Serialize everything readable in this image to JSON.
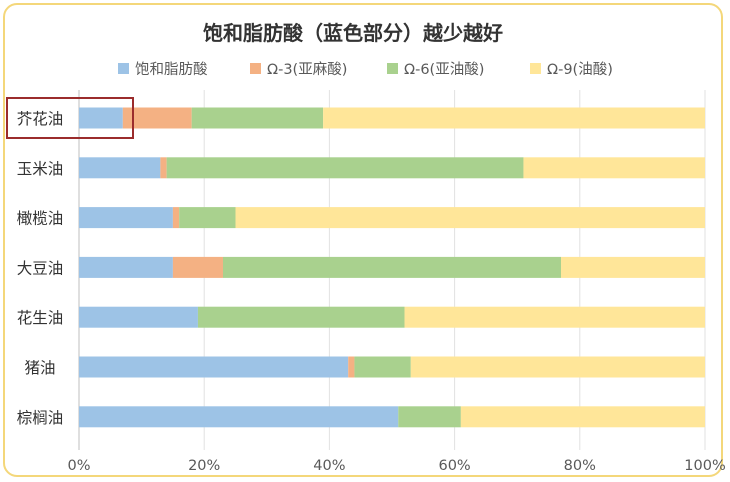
{
  "chart_data": {
    "type": "bar",
    "orientation": "horizontal",
    "stacked": true,
    "title": "饱和脂肪酸（蓝色部分）越少越好",
    "categories": [
      "芥花油",
      "玉米油",
      "橄榄油",
      "大豆油",
      "花生油",
      "猪油",
      "棕榈油"
    ],
    "series": [
      {
        "name": "饱和脂肪酸",
        "color": "#9dc3e6",
        "values": [
          7,
          13,
          15,
          15,
          19,
          43,
          51
        ]
      },
      {
        "name": "Ω-3(亚麻酸)",
        "color": "#f4b183",
        "values": [
          11,
          1,
          1,
          8,
          0,
          1,
          0
        ]
      },
      {
        "name": "Ω-6(亚油酸)",
        "color": "#a9d18e",
        "values": [
          21,
          57,
          9,
          54,
          33,
          9,
          10
        ]
      },
      {
        "name": "Ω-9(油酸)",
        "color": "#ffe699",
        "values": [
          61,
          29,
          75,
          23,
          48,
          47,
          39
        ]
      }
    ],
    "xlim": [
      0,
      100
    ],
    "xticks": [
      "0%",
      "20%",
      "40%",
      "60%",
      "80%",
      "100%"
    ],
    "grid": true,
    "legend_position": "top",
    "highlight_category": "芥花油",
    "highlight_color": "#9b2c2c"
  }
}
